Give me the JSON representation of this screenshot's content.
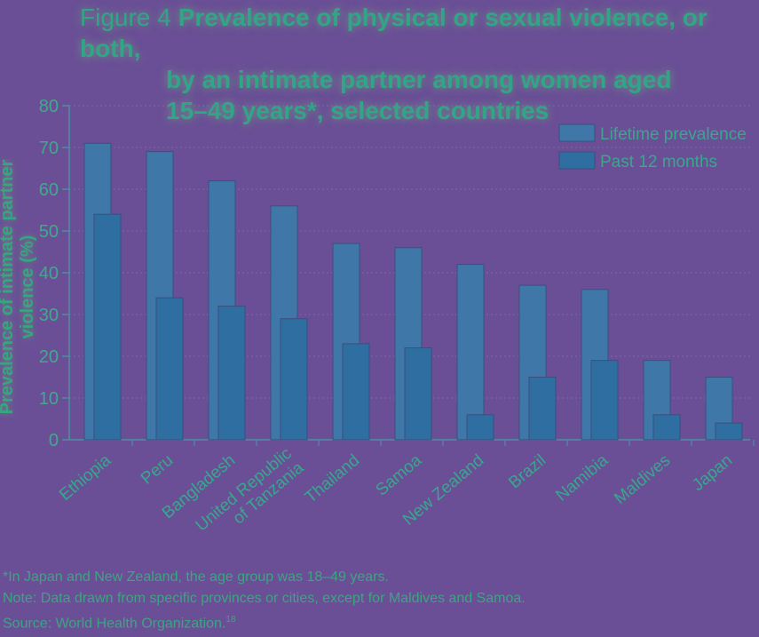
{
  "header": {
    "figure_label": "Figure 4",
    "title_lines": [
      "Prevalence of physical or sexual violence, or both,",
      "by an intimate partner among women aged",
      "15–49 years*, selected countries"
    ]
  },
  "chart_data": {
    "type": "bar",
    "categories": [
      "Ethiopia",
      "Peru",
      "Bangladesh",
      "United Republic of Tanzania",
      "Thailand",
      "Samoa",
      "New Zealand",
      "Brazil",
      "Namibia",
      "Maldives",
      "Japan"
    ],
    "category_label_lines": [
      [
        "Ethiopia"
      ],
      [
        "Peru"
      ],
      [
        "Bangladesh"
      ],
      [
        "United Republic",
        "of Tanzania"
      ],
      [
        "Thailand"
      ],
      [
        "Samoa"
      ],
      [
        "New Zealand"
      ],
      [
        "Brazil"
      ],
      [
        "Namibia"
      ],
      [
        "Maldives"
      ],
      [
        "Japan"
      ]
    ],
    "series": [
      {
        "name": "Lifetime prevalence",
        "values": [
          71,
          69,
          62,
          56,
          47,
          46,
          42,
          37,
          36,
          19,
          15
        ]
      },
      {
        "name": "Past 12 months",
        "values": [
          54,
          34,
          32,
          29,
          23,
          22,
          6,
          15,
          19,
          6,
          4
        ]
      }
    ],
    "ylabel": "Prevalence of intimate partner violence (%)",
    "ylim": [
      0,
      80
    ],
    "yticks": [
      0,
      10,
      20,
      30,
      40,
      50,
      60,
      70,
      80
    ],
    "grid": true,
    "legend": "top-right",
    "colors": {
      "lifetime": "#3f78a8",
      "past12": "#2f6ea0",
      "grid": "#7a6aa6",
      "axis": "#4c8fa0"
    }
  },
  "notes": {
    "footnote": "*In Japan and New Zealand, the age group was 18–49 years.",
    "note": "Note: Data drawn from specific provinces or cities, except for Maldives and Samoa.",
    "source": "Source: World Health Organization.",
    "source_ref": "18"
  }
}
